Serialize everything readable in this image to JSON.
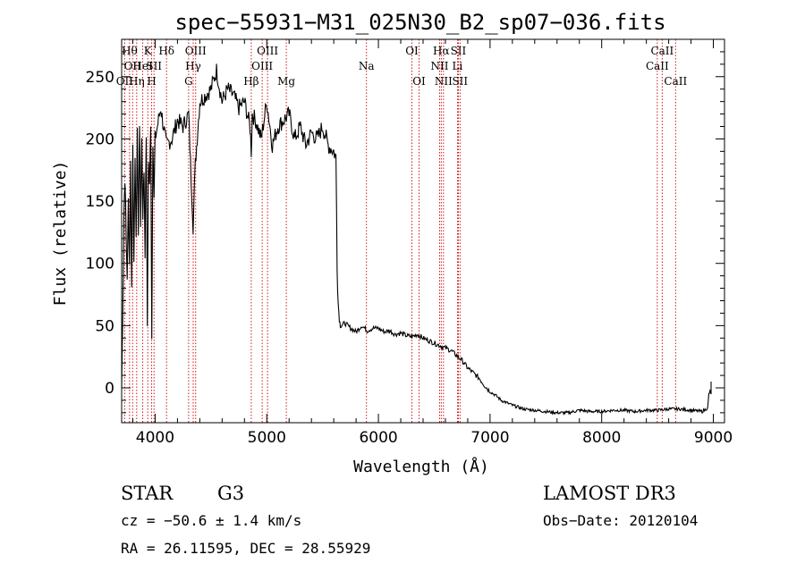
{
  "chart_data": {
    "type": "line",
    "title": "spec−55931−M31_025N30_B2_sp07−036.fits",
    "xlabel": "Wavelength (Å)",
    "ylabel": "Flux (relative)",
    "xlim": [
      3700,
      9100
    ],
    "ylim": [
      -28,
      280
    ],
    "xticks": [
      4000,
      5000,
      6000,
      7000,
      8000,
      9000
    ],
    "yticks": [
      0,
      50,
      100,
      150,
      200,
      250
    ],
    "x_minor_step": 200,
    "y_minor_step": 10,
    "line_color": "#000000",
    "marker_color": "#cc0000",
    "spectrum": {
      "name": "flux",
      "x": [
        3700,
        3710,
        3720,
        3730,
        3740,
        3750,
        3760,
        3770,
        3780,
        3790,
        3800,
        3810,
        3820,
        3830,
        3840,
        3850,
        3860,
        3870,
        3880,
        3890,
        3900,
        3910,
        3920,
        3930,
        3940,
        3950,
        3960,
        3970,
        3980,
        3990,
        4000,
        4050,
        4100,
        4150,
        4200,
        4250,
        4300,
        4340,
        4360,
        4400,
        4450,
        4500,
        4550,
        4600,
        4650,
        4700,
        4750,
        4800,
        4850,
        4861,
        4870,
        4900,
        4950,
        5000,
        5050,
        5100,
        5150,
        5200,
        5250,
        5300,
        5350,
        5400,
        5450,
        5500,
        5550,
        5600,
        5620,
        5630,
        5640,
        5650,
        5660,
        5700,
        5750,
        5800,
        5850,
        5900,
        5950,
        6000,
        6050,
        6100,
        6150,
        6200,
        6250,
        6300,
        6350,
        6400,
        6450,
        6500,
        6550,
        6600,
        6650,
        6700,
        6750,
        6800,
        6850,
        6900,
        6950,
        7000,
        7050,
        7100,
        7150,
        7200,
        7300,
        7400,
        7500,
        7600,
        7700,
        7800,
        7900,
        8000,
        8100,
        8200,
        8300,
        8400,
        8500,
        8600,
        8700,
        8800,
        8900,
        8950,
        8960,
        8970,
        8980
      ],
      "y": [
        0,
        60,
        140,
        170,
        120,
        90,
        150,
        100,
        180,
        80,
        200,
        95,
        190,
        115,
        210,
        120,
        215,
        130,
        200,
        140,
        175,
        110,
        205,
        50,
        180,
        160,
        215,
        40,
        200,
        150,
        200,
        225,
        195,
        200,
        215,
        210,
        220,
        130,
        180,
        230,
        235,
        240,
        255,
        230,
        240,
        235,
        225,
        230,
        210,
        190,
        220,
        215,
        200,
        230,
        195,
        210,
        215,
        220,
        200,
        210,
        195,
        205,
        200,
        210,
        195,
        190,
        185,
        100,
        68,
        55,
        50,
        52,
        48,
        45,
        50,
        46,
        48,
        48,
        45,
        46,
        43,
        44,
        42,
        41,
        43,
        40,
        38,
        36,
        34,
        32,
        30,
        26,
        22,
        16,
        12,
        8,
        2,
        -3,
        -6,
        -10,
        -12,
        -14,
        -17,
        -18,
        -19,
        -20,
        -20,
        -18,
        -19,
        -19,
        -18,
        -18,
        -19,
        -18,
        -18,
        -17,
        -17,
        -18,
        -19,
        -16,
        -5,
        -3,
        -5
      ]
    },
    "lines": [
      {
        "x": 3771,
        "label": "Hθ",
        "row": 0
      },
      {
        "x": 3798,
        "label": "OII",
        "row": 1
      },
      {
        "x": 3727,
        "label": "OII",
        "row": 2
      },
      {
        "x": 3835,
        "label": "Hη",
        "row": 2
      },
      {
        "x": 3889,
        "label": "HeI",
        "row": 1
      },
      {
        "x": 3934,
        "label": "K",
        "row": 0
      },
      {
        "x": 3969,
        "label": "H",
        "row": 2
      },
      {
        "x": 3990,
        "label": "SII",
        "row": 1
      },
      {
        "x": 4102,
        "label": "Hδ",
        "row": 0
      },
      {
        "x": 4300,
        "label": "G",
        "row": 2
      },
      {
        "x": 4341,
        "label": "Hγ",
        "row": 1
      },
      {
        "x": 4363,
        "label": "OIII",
        "row": 0
      },
      {
        "x": 4861,
        "label": "Hβ",
        "row": 2
      },
      {
        "x": 4959,
        "label": "OIII",
        "row": 1
      },
      {
        "x": 5007,
        "label": "OIII",
        "row": 0
      },
      {
        "x": 5175,
        "label": "Mg",
        "row": 2
      },
      {
        "x": 5893,
        "label": "Na",
        "row": 1
      },
      {
        "x": 6300,
        "label": "OI",
        "row": 0
      },
      {
        "x": 6364,
        "label": "OI",
        "row": 2
      },
      {
        "x": 6548,
        "label": "NII",
        "row": 1
      },
      {
        "x": 6563,
        "label": "Hα",
        "row": 0
      },
      {
        "x": 6583,
        "label": "NII",
        "row": 2
      },
      {
        "x": 6708,
        "label": "Li",
        "row": 1
      },
      {
        "x": 6716,
        "label": "SII",
        "row": 0
      },
      {
        "x": 6731,
        "label": "SII",
        "row": 2
      },
      {
        "x": 8498,
        "label": "CaII",
        "row": 1
      },
      {
        "x": 8542,
        "label": "CaII",
        "row": 0
      },
      {
        "x": 8662,
        "label": "CaII",
        "row": 2
      }
    ]
  },
  "info": {
    "object_class": "STAR",
    "subclass": "G3",
    "survey": "LAMOST DR3",
    "redshift_line": "cz = −50.6 ± 1.4 km/s",
    "obs_date_line": "Obs−Date: 20120104",
    "coords_line": "RA =  26.11595, DEC =  28.55929"
  }
}
